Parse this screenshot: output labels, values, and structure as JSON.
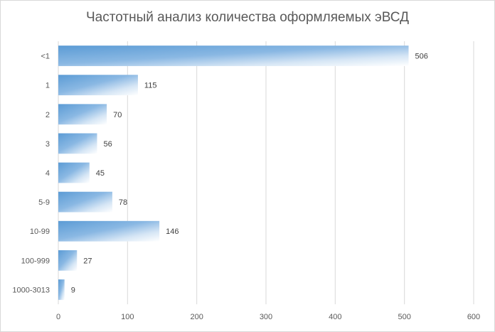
{
  "chart_data": {
    "type": "bar",
    "orientation": "horizontal",
    "title": "Частотный анализ количества оформляемых эВСД",
    "categories": [
      "<1",
      "1",
      "2",
      "3",
      "4",
      "5-9",
      "10-99",
      "100-999",
      "1000-3013"
    ],
    "values": [
      506,
      115,
      70,
      56,
      45,
      78,
      146,
      27,
      9
    ],
    "x_ticks": [
      "0",
      "100",
      "200",
      "300",
      "400",
      "500",
      "600"
    ],
    "xlim": [
      0,
      600
    ],
    "grid": true,
    "legend": "none",
    "bar_color": "#5b9bd5"
  }
}
